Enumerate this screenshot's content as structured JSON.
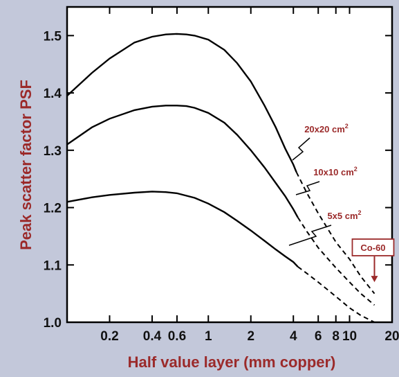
{
  "chart_data": {
    "type": "line",
    "xlabel": "Half value layer  (mm copper)",
    "ylabel": "Peak scatter factor PSF",
    "x_scale": "log",
    "xlim": [
      0.1,
      20
    ],
    "ylim": [
      1.0,
      1.55
    ],
    "x_ticks": [
      {
        "value": 0.2,
        "label": "0.2"
      },
      {
        "value": 0.4,
        "label": "0.4"
      },
      {
        "value": 0.6,
        "label": "0.6"
      },
      {
        "value": 1,
        "label": "1"
      },
      {
        "value": 2,
        "label": "2"
      },
      {
        "value": 4,
        "label": "4"
      },
      {
        "value": 6,
        "label": "6"
      },
      {
        "value": 8,
        "label": "8"
      },
      {
        "value": 10,
        "label": "10"
      },
      {
        "value": 20,
        "label": "20"
      }
    ],
    "y_ticks": [
      {
        "value": 1.0,
        "label": "1.0"
      },
      {
        "value": 1.1,
        "label": "1.1"
      },
      {
        "value": 1.2,
        "label": "1.2"
      },
      {
        "value": 1.3,
        "label": "1.3"
      },
      {
        "value": 1.4,
        "label": "1.4"
      },
      {
        "value": 1.5,
        "label": "1.5"
      }
    ],
    "series": [
      {
        "name": "20x20 cm",
        "superscript": "2",
        "x": [
          0.1,
          0.15,
          0.2,
          0.3,
          0.4,
          0.5,
          0.6,
          0.7,
          0.8,
          1.0,
          1.3,
          1.6,
          2.0,
          2.5,
          3.0,
          3.5,
          4.0,
          4.2
        ],
        "y": [
          1.395,
          1.435,
          1.46,
          1.488,
          1.498,
          1.502,
          1.503,
          1.502,
          1.5,
          1.493,
          1.475,
          1.452,
          1.42,
          1.378,
          1.34,
          1.303,
          1.275,
          1.262
        ],
        "dashed_x": [
          4.2,
          5,
          6,
          8,
          10,
          12,
          15
        ],
        "dashed_y": [
          1.262,
          1.225,
          1.19,
          1.14,
          1.11,
          1.08,
          1.05
        ]
      },
      {
        "name": "10x10 cm",
        "superscript": "2",
        "x": [
          0.1,
          0.15,
          0.2,
          0.3,
          0.4,
          0.5,
          0.6,
          0.7,
          0.8,
          1.0,
          1.3,
          1.6,
          2.0,
          2.5,
          3.0,
          3.5,
          4.0,
          4.3
        ],
        "y": [
          1.31,
          1.34,
          1.355,
          1.37,
          1.376,
          1.378,
          1.378,
          1.377,
          1.374,
          1.365,
          1.348,
          1.327,
          1.3,
          1.27,
          1.243,
          1.22,
          1.197,
          1.183
        ],
        "dashed_x": [
          4.3,
          5,
          6,
          8,
          10,
          12,
          15
        ],
        "dashed_y": [
          1.183,
          1.158,
          1.13,
          1.095,
          1.07,
          1.05,
          1.03
        ]
      },
      {
        "name": "5x5 cm",
        "superscript": "2",
        "x": [
          0.1,
          0.15,
          0.2,
          0.3,
          0.4,
          0.5,
          0.6,
          0.8,
          1.0,
          1.3,
          1.6,
          2.0,
          2.5,
          3.0,
          3.5,
          4.0,
          4.3
        ],
        "y": [
          1.21,
          1.218,
          1.222,
          1.226,
          1.228,
          1.227,
          1.225,
          1.217,
          1.207,
          1.192,
          1.177,
          1.16,
          1.142,
          1.127,
          1.115,
          1.105,
          1.097
        ],
        "dashed_x": [
          4.3,
          5,
          6,
          8,
          10,
          12,
          15
        ],
        "dashed_y": [
          1.097,
          1.085,
          1.07,
          1.045,
          1.025,
          1.012,
          1.0
        ]
      }
    ],
    "annotations": [
      {
        "label": "Co-60",
        "x": 15,
        "arrow_to_y": 1.07
      }
    ],
    "grid": false,
    "colors": {
      "background": "#c3c8da",
      "plot_background": "#ffffff",
      "axis_text": "#111111",
      "accent_red": "#9b2a2a",
      "curve": "#000000"
    }
  }
}
